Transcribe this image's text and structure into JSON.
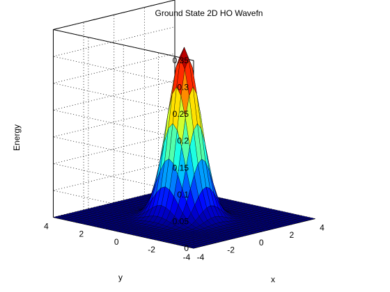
{
  "chart_data": {
    "type": "surface",
    "title": "Ground State 2D HO Wavefn",
    "xlabel": "x",
    "ylabel": "y",
    "zlabel": "Energy",
    "xlim": [
      -4,
      4
    ],
    "ylim": [
      -4,
      4
    ],
    "zlim": [
      0,
      0.35
    ],
    "x_ticks": [
      "-4",
      "-2",
      "0",
      "2",
      "4"
    ],
    "y_ticks": [
      "-4",
      "-2",
      "0",
      "2",
      "4"
    ],
    "z_ticks": [
      "0",
      "0.05",
      "0.1",
      "0.15",
      "0.2",
      "0.25",
      "0.3",
      "0.35"
    ],
    "function": "z = exp(-(x^2 + y^2)) / pi",
    "peak": {
      "x": 0,
      "y": 0,
      "z": 0.318
    },
    "grid_points_per_axis": 33,
    "grid": true,
    "colormap": "jet",
    "edge_color": "#000000"
  }
}
